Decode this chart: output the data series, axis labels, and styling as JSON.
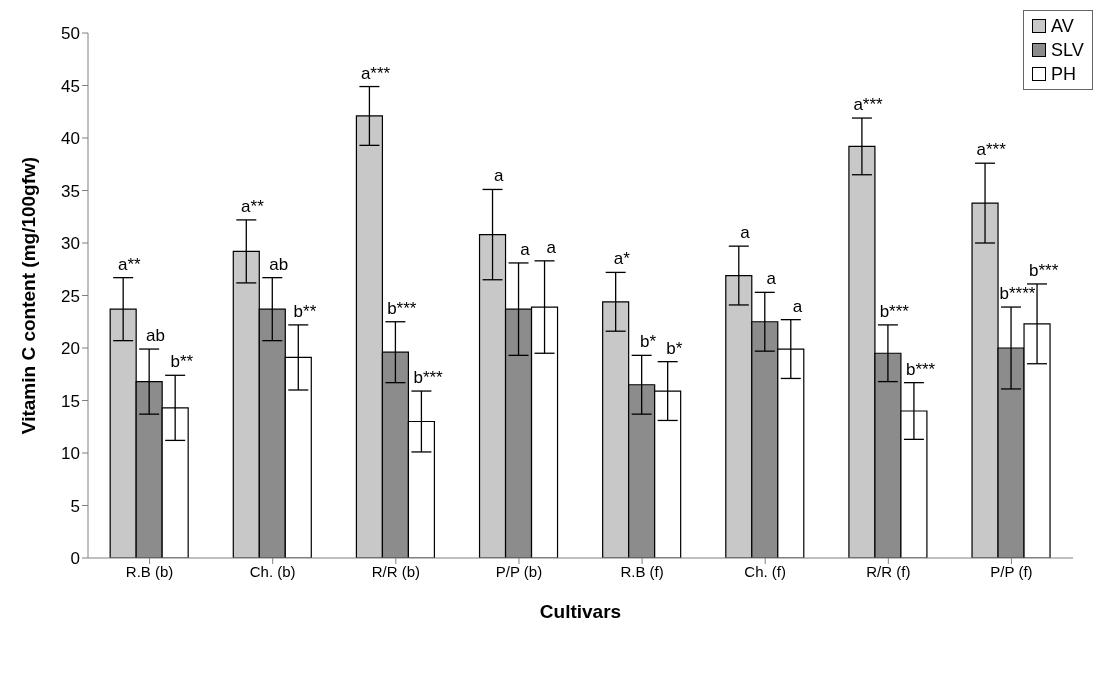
{
  "chart_data": {
    "type": "bar",
    "xlabel": "Cultivars",
    "ylabel": "Vitamin C content (mg/100gfw)",
    "categories": [
      "R.B (b)",
      "Ch. (b)",
      "R/R (b)",
      "P/P (b)",
      "R.B (f)",
      "Ch. (f)",
      "R/R (f)",
      "P/P (f)"
    ],
    "series": [
      {
        "name": "AV",
        "color": "#c8c8c8",
        "values": [
          23.7,
          29.2,
          42.1,
          30.8,
          24.4,
          26.9,
          39.2,
          33.8
        ],
        "errors": [
          3.0,
          3.0,
          2.8,
          4.3,
          2.8,
          2.8,
          2.7,
          3.8
        ]
      },
      {
        "name": "SLV",
        "color": "#8c8c8c",
        "values": [
          16.8,
          23.7,
          19.6,
          23.7,
          16.5,
          22.5,
          19.5,
          20.0
        ],
        "errors": [
          3.1,
          3.0,
          2.9,
          4.4,
          2.8,
          2.8,
          2.7,
          3.9
        ]
      },
      {
        "name": "PH",
        "color": "#ffffff",
        "values": [
          14.3,
          19.1,
          13.0,
          23.9,
          15.9,
          19.9,
          14.0,
          22.3
        ],
        "errors": [
          3.1,
          3.1,
          2.9,
          4.4,
          2.8,
          2.8,
          2.7,
          3.8
        ]
      }
    ],
    "ylim": [
      0,
      50
    ],
    "yticks": [
      0,
      5,
      10,
      15,
      20,
      25,
      30,
      35,
      40,
      45,
      50
    ],
    "grid": false,
    "legend": "top right",
    "annotations": [
      "a**",
      "ab",
      "b**",
      "a**",
      "ab",
      "b**",
      "a***",
      "b***",
      "b***",
      "a",
      "a",
      "a",
      "a*",
      "b*",
      "b*",
      "a",
      "a",
      "a",
      "a***",
      "b***",
      "b***",
      "a***",
      "b****",
      "b***"
    ]
  }
}
